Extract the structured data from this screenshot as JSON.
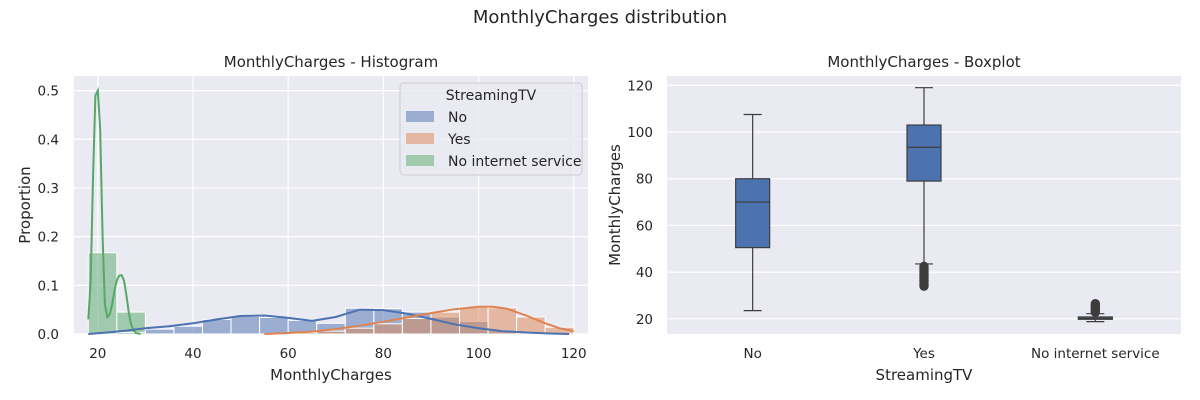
{
  "figure": {
    "title": "MonthlyCharges distribution"
  },
  "colors": {
    "No": "#4c72b0",
    "Yes": "#dd8452",
    "No internet service": "#55a868",
    "panel_bg": "#eaeaf2",
    "grid": "#ffffff"
  },
  "chart_data": [
    {
      "type": "histogram",
      "title": "MonthlyCharges - Histogram",
      "xlabel": "MonthlyCharges",
      "ylabel": "Proportion",
      "xlim": [
        15,
        123
      ],
      "ylim": [
        0,
        0.53
      ],
      "xticks": [
        20,
        40,
        60,
        80,
        100,
        120
      ],
      "yticks": [
        0.0,
        0.1,
        0.2,
        0.3,
        0.4,
        0.5
      ],
      "grid": true,
      "kde": true,
      "legend": {
        "title": "StreamingTV",
        "placement": "top-right",
        "entries": [
          "No",
          "Yes",
          "No internet service"
        ]
      },
      "series": [
        {
          "name": "No internet service",
          "bins": [
            [
              18,
              24,
              0.167
            ],
            [
              24,
              30,
              0.045
            ]
          ],
          "kde": [
            [
              18,
              0.03
            ],
            [
              18.5,
              0.11
            ],
            [
              19,
              0.32
            ],
            [
              19.5,
              0.49
            ],
            [
              20,
              0.5
            ],
            [
              20.5,
              0.42
            ],
            [
              21,
              0.2
            ],
            [
              21.5,
              0.06
            ],
            [
              22,
              0.035
            ],
            [
              22.5,
              0.04
            ],
            [
              23,
              0.06
            ],
            [
              23.5,
              0.09
            ],
            [
              24,
              0.11
            ],
            [
              24.5,
              0.12
            ],
            [
              25,
              0.121
            ],
            [
              25.5,
              0.11
            ],
            [
              26,
              0.08
            ],
            [
              26.5,
              0.045
            ],
            [
              27,
              0.02
            ],
            [
              27.5,
              0.008
            ],
            [
              28,
              0.002
            ],
            [
              29,
              0.0
            ]
          ]
        },
        {
          "name": "No",
          "bins": [
            [
              24,
              30,
              0.003
            ],
            [
              30,
              36,
              0.01
            ],
            [
              36,
              42,
              0.016
            ],
            [
              42,
              48,
              0.03
            ],
            [
              48,
              54,
              0.036
            ],
            [
              54,
              60,
              0.034
            ],
            [
              60,
              66,
              0.028
            ],
            [
              66,
              72,
              0.022
            ],
            [
              72,
              78,
              0.053
            ],
            [
              78,
              84,
              0.052
            ],
            [
              84,
              90,
              0.045
            ],
            [
              90,
              96,
              0.035
            ],
            [
              96,
              102,
              0.026
            ],
            [
              102,
              108,
              0.008
            ],
            [
              108,
              114,
              0.002
            ]
          ],
          "kde": [
            [
              18,
              0.0
            ],
            [
              22,
              0.003
            ],
            [
              26,
              0.007
            ],
            [
              30,
              0.012
            ],
            [
              35,
              0.016
            ],
            [
              40,
              0.022
            ],
            [
              45,
              0.03
            ],
            [
              50,
              0.037
            ],
            [
              55,
              0.038
            ],
            [
              60,
              0.033
            ],
            [
              65,
              0.027
            ],
            [
              70,
              0.035
            ],
            [
              75,
              0.05
            ],
            [
              80,
              0.049
            ],
            [
              85,
              0.042
            ],
            [
              90,
              0.031
            ],
            [
              95,
              0.02
            ],
            [
              100,
              0.012
            ],
            [
              105,
              0.006
            ],
            [
              110,
              0.003
            ],
            [
              115,
              0.001
            ],
            [
              119,
              0.0
            ]
          ]
        },
        {
          "name": "Yes",
          "bins": [
            [
              60,
              66,
              0.003
            ],
            [
              66,
              72,
              0.006
            ],
            [
              72,
              78,
              0.012
            ],
            [
              78,
              84,
              0.021
            ],
            [
              84,
              90,
              0.032
            ],
            [
              90,
              96,
              0.045
            ],
            [
              96,
              102,
              0.055
            ],
            [
              102,
              108,
              0.054
            ],
            [
              108,
              114,
              0.035
            ],
            [
              114,
              120,
              0.014
            ]
          ],
          "kde": [
            [
              55,
              0.0
            ],
            [
              60,
              0.002
            ],
            [
              65,
              0.005
            ],
            [
              70,
              0.01
            ],
            [
              75,
              0.017
            ],
            [
              80,
              0.025
            ],
            [
              85,
              0.034
            ],
            [
              90,
              0.043
            ],
            [
              95,
              0.051
            ],
            [
              100,
              0.056
            ],
            [
              103,
              0.056
            ],
            [
              106,
              0.052
            ],
            [
              110,
              0.038
            ],
            [
              114,
              0.022
            ],
            [
              117,
              0.012
            ],
            [
              120,
              0.006
            ]
          ]
        }
      ]
    },
    {
      "type": "boxplot",
      "title": "MonthlyCharges - Boxplot",
      "xlabel": "StreamingTV",
      "ylabel": "MonthlyCharges",
      "ylim": [
        13.5,
        124
      ],
      "yticks": [
        20,
        40,
        60,
        80,
        100,
        120
      ],
      "grid": true,
      "categories": [
        "No",
        "Yes",
        "No internet service"
      ],
      "boxes": [
        {
          "category": "No",
          "whisker_low": 23.5,
          "q1": 50.5,
          "median": 70,
          "q3": 80,
          "whisker_high": 107.5,
          "outliers": []
        },
        {
          "category": "Yes",
          "whisker_low": 43.5,
          "q1": 79,
          "median": 93.5,
          "q3": 103,
          "whisker_high": 119,
          "outliers": [
            42.5,
            41.5,
            40.5,
            39.8,
            39,
            38.2,
            37.4,
            36.5,
            35.7,
            34.8,
            34
          ]
        },
        {
          "category": "No internet service",
          "whisker_low": 18.8,
          "q1": 19.8,
          "median": 20.2,
          "q3": 20.8,
          "whisker_high": 22.2,
          "outliers": [
            22.8,
            23.4,
            24,
            24.6,
            25.2,
            25.8,
            26.5
          ]
        }
      ]
    }
  ]
}
